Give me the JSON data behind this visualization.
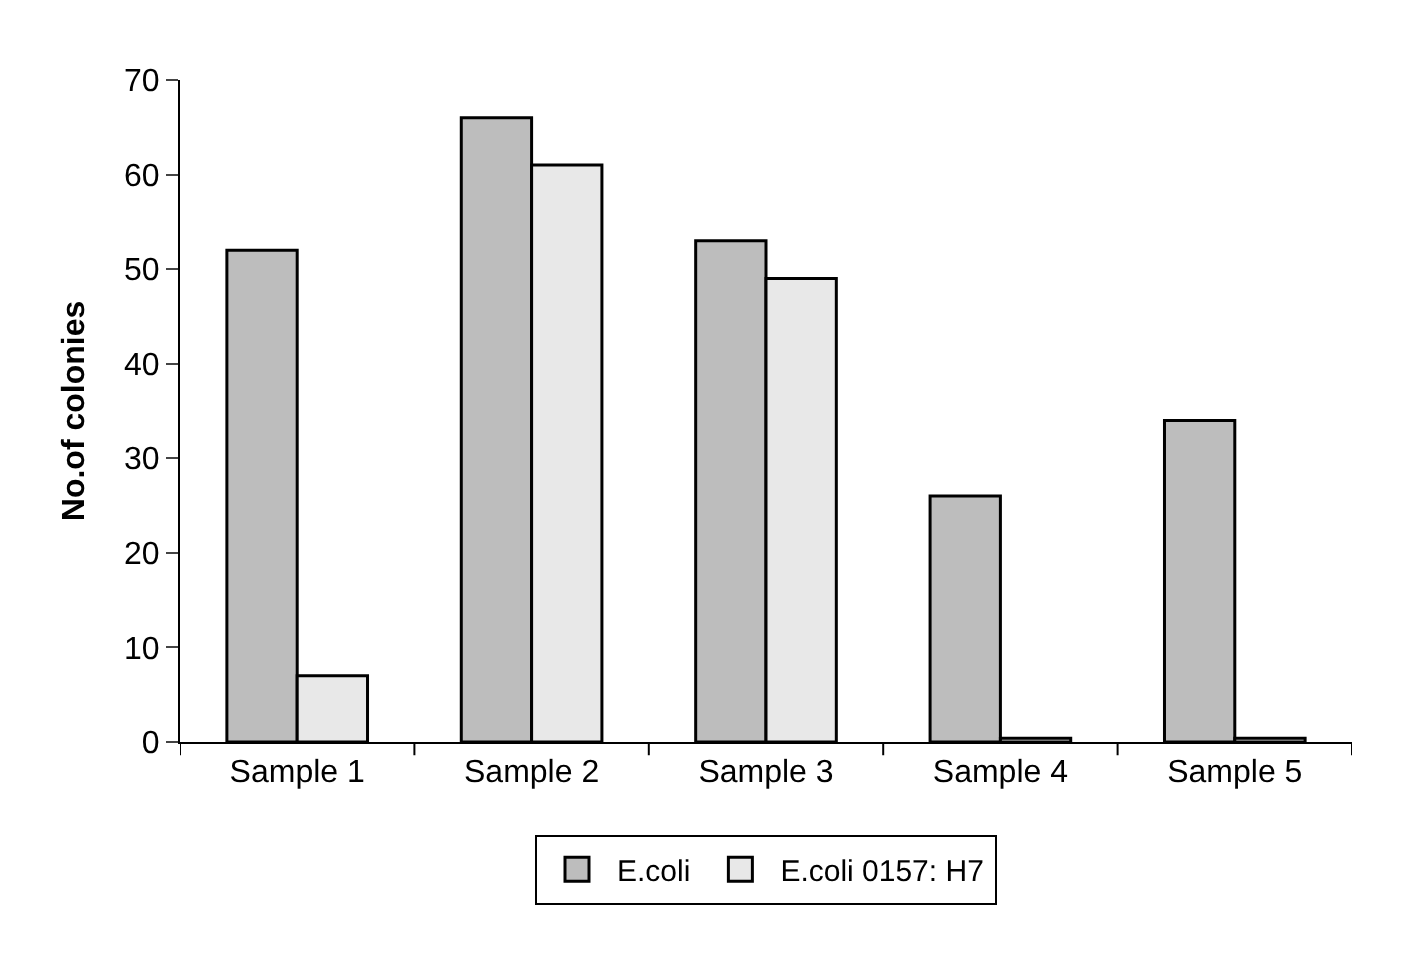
{
  "chart_data": {
    "type": "bar",
    "ylabel": "No.of colonies",
    "categories": [
      "Sample 1",
      "Sample 2",
      "Sample 3",
      "Sample 4",
      "Sample 5"
    ],
    "series": [
      {
        "name": "E.coli",
        "color": "#bdbdbd",
        "values": [
          52,
          66,
          53,
          26,
          34
        ]
      },
      {
        "name": "E.coli 0157: H7",
        "color": "#e8e8e8",
        "values": [
          7,
          61,
          49,
          0.4,
          0.4
        ]
      }
    ],
    "ylim": [
      0,
      70
    ],
    "yticks": [
      0,
      10,
      20,
      30,
      40,
      50,
      60,
      70
    ],
    "legend": "bottom"
  }
}
